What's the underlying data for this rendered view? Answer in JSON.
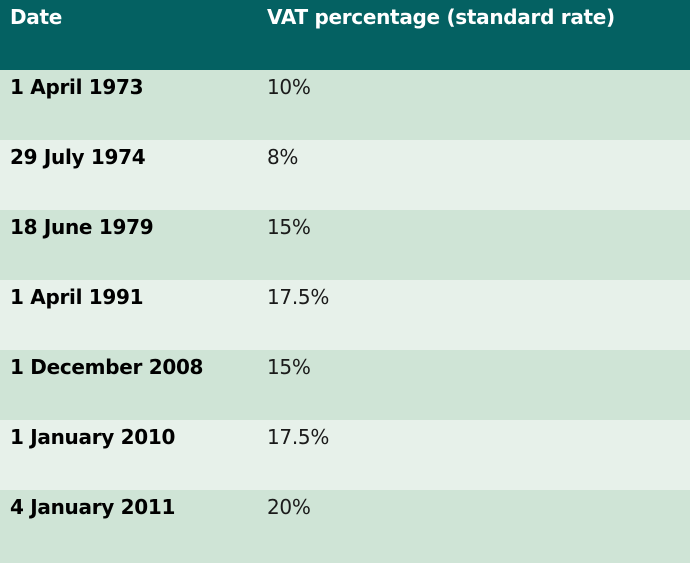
{
  "table": {
    "headers": {
      "date": "Date",
      "rate": "VAT percentage (standard rate)"
    },
    "rows": [
      {
        "date": "1 April 1973",
        "rate": "10%"
      },
      {
        "date": "29 July 1974",
        "rate": "8%"
      },
      {
        "date": "18 June 1979",
        "rate": "15%"
      },
      {
        "date": "1 April 1991",
        "rate": "17.5%"
      },
      {
        "date": "1 December 2008",
        "rate": "15%"
      },
      {
        "date": "1 January 2010",
        "rate": "17.5%"
      },
      {
        "date": "4 January 2011",
        "rate": "20%"
      }
    ]
  },
  "colors": {
    "header_background": "#046162",
    "row_dark": "#cfe4d6",
    "row_light": "#e7f1ea"
  }
}
